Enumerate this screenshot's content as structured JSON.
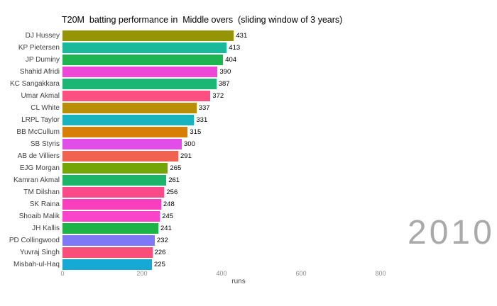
{
  "title": "T20M  batting performance in  Middle overs  (sliding window of 3 years)",
  "year_watermark": "2010",
  "chart_data": {
    "type": "bar",
    "orientation": "horizontal",
    "title": "T20M  batting performance in  Middle overs  (sliding window of 3 years)",
    "xlabel": "runs",
    "ylabel": "",
    "xlim": [
      0,
      885
    ],
    "x_ticks": [
      "0",
      "200",
      "400",
      "600",
      "800"
    ],
    "x_tick_values": [
      0,
      200,
      400,
      600,
      800
    ],
    "grid": false,
    "legend": false,
    "categories": [
      "DJ Hussey",
      "KP Pietersen",
      "JP Duminy",
      "Shahid Afridi",
      "KC Sangakkara",
      "Umar Akmal",
      "CL White",
      "LRPL Taylor",
      "BB McCullum",
      "SB Styris",
      "AB de Villiers",
      "EJG Morgan",
      "Kamran Akmal",
      "TM Dilshan",
      "SK Raina",
      "Shoaib Malik",
      "JH Kallis",
      "PD Collingwood",
      "Yuvraj Singh",
      "Misbah-ul-Haq"
    ],
    "values": [
      431,
      413,
      404,
      390,
      387,
      372,
      337,
      331,
      315,
      300,
      291,
      265,
      261,
      256,
      248,
      245,
      241,
      232,
      226,
      225
    ],
    "bar_colors": [
      "#949406",
      "#1BB99B",
      "#1DB451",
      "#EE46D7",
      "#1BB574",
      "#FB5080",
      "#B78E05",
      "#17B4C0",
      "#D67E06",
      "#E24DE9",
      "#EF6350",
      "#74A506",
      "#1BB468",
      "#FA4A89",
      "#F93FBE",
      "#F943C8",
      "#1DB447",
      "#7D78F5",
      "#F94E79",
      "#15A9D6"
    ]
  },
  "colors": {
    "background": "#ffffff",
    "title_text": "#000000",
    "player_label_text": "#404040",
    "value_label_text": "#000000",
    "tick_label_text": "#8c8c8c",
    "axis_label_text": "#444444",
    "watermark_text": "#a9a9a9"
  }
}
